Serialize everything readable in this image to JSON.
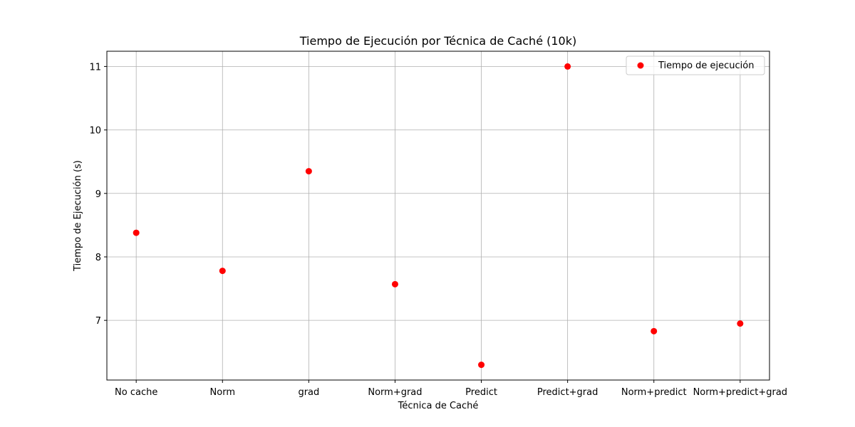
{
  "chart_data": {
    "type": "scatter",
    "title": "Tiempo de Ejecución por Técnica de Caché (10k)",
    "xlabel": "Técnica de Caché",
    "ylabel": "Tiempo de Ejecución (s)",
    "categories": [
      "No cache",
      "Norm",
      "grad",
      "Norm+grad",
      "Predict",
      "Predict+grad",
      "Norm+predict",
      "Norm+predict+grad"
    ],
    "series": [
      {
        "name": "Tiempo de ejecución",
        "color": "#ff0000",
        "values": [
          8.38,
          7.78,
          9.35,
          7.57,
          6.3,
          11.0,
          6.83,
          6.95
        ]
      }
    ],
    "ylim": [
      6.06,
      11.24
    ],
    "yticks": [
      7,
      8,
      9,
      10,
      11
    ],
    "grid": true,
    "legend_position": "top-right"
  }
}
